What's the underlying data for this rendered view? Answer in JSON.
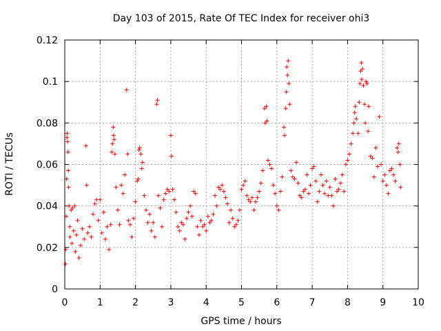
{
  "chart_data": {
    "type": "scatter",
    "title": "Day 103 of 2015, Rate Of TEC Index for receiver ohi3",
    "xlabel": "GPS time / hours",
    "ylabel": "ROTI / TECUs",
    "xlim": [
      0,
      10
    ],
    "ylim": [
      0,
      0.12
    ],
    "xticks": [
      "0",
      "1",
      "2",
      "3",
      "4",
      "5",
      "6",
      "7",
      "8",
      "9",
      "10"
    ],
    "yticks": [
      "0",
      "0.02",
      "0.04",
      "0.06",
      "0.08",
      "0.1",
      "0.12"
    ],
    "grid": true,
    "marker": "+",
    "marker_color": "#ff0000",
    "series": [
      {
        "name": "ROTI",
        "color": "#ff0000",
        "points": [
          [
            0.02,
            0.012
          ],
          [
            0.03,
            0.019
          ],
          [
            0.04,
            0.035
          ],
          [
            0.05,
            0.053
          ],
          [
            0.06,
            0.073
          ],
          [
            0.07,
            0.075
          ],
          [
            0.08,
            0.071
          ],
          [
            0.09,
            0.066
          ],
          [
            0.1,
            0.057
          ],
          [
            0.11,
            0.049
          ],
          [
            0.12,
            0.04
          ],
          [
            0.14,
            0.03
          ],
          [
            0.15,
            0.025
          ],
          [
            0.18,
            0.038
          ],
          [
            0.2,
            0.022
          ],
          [
            0.22,
            0.039
          ],
          [
            0.25,
            0.028
          ],
          [
            0.28,
            0.04
          ],
          [
            0.3,
            0.018
          ],
          [
            0.33,
            0.026
          ],
          [
            0.36,
            0.033
          ],
          [
            0.4,
            0.015
          ],
          [
            0.45,
            0.021
          ],
          [
            0.5,
            0.029
          ],
          [
            0.55,
            0.024
          ],
          [
            0.6,
            0.069
          ],
          [
            0.62,
            0.05
          ],
          [
            0.65,
            0.027
          ],
          [
            0.7,
            0.03
          ],
          [
            0.75,
            0.025
          ],
          [
            0.8,
            0.036
          ],
          [
            0.85,
            0.041
          ],
          [
            0.9,
            0.043
          ],
          [
            0.95,
            0.033
          ],
          [
            1.0,
            0.043
          ],
          [
            1.05,
            0.027
          ],
          [
            1.1,
            0.037
          ],
          [
            1.15,
            0.024
          ],
          [
            1.2,
            0.03
          ],
          [
            1.25,
            0.019
          ],
          [
            1.3,
            0.031
          ],
          [
            1.33,
            0.066
          ],
          [
            1.35,
            0.07
          ],
          [
            1.37,
            0.078
          ],
          [
            1.38,
            0.074
          ],
          [
            1.4,
            0.072
          ],
          [
            1.42,
            0.065
          ],
          [
            1.45,
            0.049
          ],
          [
            1.5,
            0.038
          ],
          [
            1.55,
            0.031
          ],
          [
            1.6,
            0.05
          ],
          [
            1.65,
            0.046
          ],
          [
            1.7,
            0.055
          ],
          [
            1.75,
            0.096
          ],
          [
            1.78,
            0.065
          ],
          [
            1.8,
            0.033
          ],
          [
            1.85,
            0.031
          ],
          [
            1.9,
            0.025
          ],
          [
            1.95,
            0.034
          ],
          [
            2.0,
            0.042
          ],
          [
            2.05,
            0.052
          ],
          [
            2.08,
            0.053
          ],
          [
            2.1,
            0.067
          ],
          [
            2.12,
            0.068
          ],
          [
            2.15,
            0.065
          ],
          [
            2.18,
            0.058
          ],
          [
            2.2,
            0.061
          ],
          [
            2.25,
            0.045
          ],
          [
            2.3,
            0.038
          ],
          [
            2.35,
            0.032
          ],
          [
            2.4,
            0.036
          ],
          [
            2.45,
            0.028
          ],
          [
            2.5,
            0.032
          ],
          [
            2.55,
            0.025
          ],
          [
            2.6,
            0.089
          ],
          [
            2.62,
            0.091
          ],
          [
            2.65,
            0.045
          ],
          [
            2.7,
            0.039
          ],
          [
            2.75,
            0.03
          ],
          [
            2.8,
            0.043
          ],
          [
            2.85,
            0.046
          ],
          [
            2.9,
            0.048
          ],
          [
            2.95,
            0.047
          ],
          [
            3.0,
            0.074
          ],
          [
            3.02,
            0.064
          ],
          [
            3.05,
            0.048
          ],
          [
            3.1,
            0.043
          ],
          [
            3.15,
            0.037
          ],
          [
            3.2,
            0.03
          ],
          [
            3.25,
            0.028
          ],
          [
            3.3,
            0.032
          ],
          [
            3.35,
            0.031
          ],
          [
            3.4,
            0.024
          ],
          [
            3.45,
            0.034
          ],
          [
            3.5,
            0.037
          ],
          [
            3.55,
            0.04
          ],
          [
            3.6,
            0.035
          ],
          [
            3.65,
            0.047
          ],
          [
            3.7,
            0.046
          ],
          [
            3.75,
            0.03
          ],
          [
            3.8,
            0.026
          ],
          [
            3.85,
            0.033
          ],
          [
            3.9,
            0.03
          ],
          [
            3.95,
            0.031
          ],
          [
            4.0,
            0.028
          ],
          [
            4.05,
            0.035
          ],
          [
            4.1,
            0.032
          ],
          [
            4.15,
            0.033
          ],
          [
            4.2,
            0.036
          ],
          [
            4.25,
            0.045
          ],
          [
            4.3,
            0.04
          ],
          [
            4.35,
            0.049
          ],
          [
            4.4,
            0.048
          ],
          [
            4.45,
            0.05
          ],
          [
            4.5,
            0.047
          ],
          [
            4.55,
            0.044
          ],
          [
            4.6,
            0.041
          ],
          [
            4.65,
            0.032
          ],
          [
            4.7,
            0.038
          ],
          [
            4.75,
            0.034
          ],
          [
            4.8,
            0.03
          ],
          [
            4.85,
            0.031
          ],
          [
            4.9,
            0.033
          ],
          [
            4.95,
            0.038
          ],
          [
            5.0,
            0.048
          ],
          [
            5.05,
            0.05
          ],
          [
            5.1,
            0.052
          ],
          [
            5.15,
            0.045
          ],
          [
            5.2,
            0.043
          ],
          [
            5.25,
            0.042
          ],
          [
            5.3,
            0.044
          ],
          [
            5.35,
            0.038
          ],
          [
            5.4,
            0.042
          ],
          [
            5.45,
            0.044
          ],
          [
            5.5,
            0.047
          ],
          [
            5.55,
            0.051
          ],
          [
            5.6,
            0.057
          ],
          [
            5.65,
            0.087
          ],
          [
            5.67,
            0.08
          ],
          [
            5.7,
            0.088
          ],
          [
            5.72,
            0.081
          ],
          [
            5.75,
            0.062
          ],
          [
            5.8,
            0.06
          ],
          [
            5.85,
            0.058
          ],
          [
            5.9,
            0.05
          ],
          [
            5.95,
            0.046
          ],
          [
            6.0,
            0.04
          ],
          [
            6.05,
            0.038
          ],
          [
            6.1,
            0.047
          ],
          [
            6.15,
            0.054
          ],
          [
            6.2,
            0.078
          ],
          [
            6.22,
            0.074
          ],
          [
            6.25,
            0.087
          ],
          [
            6.27,
            0.095
          ],
          [
            6.28,
            0.107
          ],
          [
            6.3,
            0.103
          ],
          [
            6.32,
            0.11
          ],
          [
            6.34,
            0.099
          ],
          [
            6.36,
            0.089
          ],
          [
            6.4,
            0.057
          ],
          [
            6.45,
            0.054
          ],
          [
            6.5,
            0.053
          ],
          [
            6.55,
            0.061
          ],
          [
            6.6,
            0.051
          ],
          [
            6.65,
            0.045
          ],
          [
            6.7,
            0.044
          ],
          [
            6.75,
            0.047
          ],
          [
            6.8,
            0.048
          ],
          [
            6.85,
            0.055
          ],
          [
            6.9,
            0.046
          ],
          [
            6.95,
            0.05
          ],
          [
            7.0,
            0.058
          ],
          [
            7.05,
            0.059
          ],
          [
            7.1,
            0.052
          ],
          [
            7.15,
            0.042
          ],
          [
            7.2,
            0.047
          ],
          [
            7.25,
            0.055
          ],
          [
            7.3,
            0.05
          ],
          [
            7.35,
            0.046
          ],
          [
            7.4,
            0.052
          ],
          [
            7.45,
            0.045
          ],
          [
            7.5,
            0.049
          ],
          [
            7.55,
            0.045
          ],
          [
            7.6,
            0.04
          ],
          [
            7.65,
            0.053
          ],
          [
            7.7,
            0.047
          ],
          [
            7.75,
            0.048
          ],
          [
            7.8,
            0.051
          ],
          [
            7.85,
            0.055
          ],
          [
            7.9,
            0.047
          ],
          [
            7.95,
            0.06
          ],
          [
            8.0,
            0.062
          ],
          [
            8.05,
            0.065
          ],
          [
            8.1,
            0.07
          ],
          [
            8.15,
            0.075
          ],
          [
            8.18,
            0.08
          ],
          [
            8.2,
            0.085
          ],
          [
            8.22,
            0.088
          ],
          [
            8.25,
            0.082
          ],
          [
            8.3,
            0.075
          ],
          [
            8.33,
            0.09
          ],
          [
            8.35,
            0.099
          ],
          [
            8.37,
            0.105
          ],
          [
            8.39,
            0.109
          ],
          [
            8.4,
            0.101
          ],
          [
            8.42,
            0.106
          ],
          [
            8.45,
            0.098
          ],
          [
            8.48,
            0.089
          ],
          [
            8.5,
            0.08
          ],
          [
            8.52,
            0.1
          ],
          [
            8.55,
            0.099
          ],
          [
            8.58,
            0.076
          ],
          [
            8.6,
            0.088
          ],
          [
            8.65,
            0.064
          ],
          [
            8.7,
            0.063
          ],
          [
            8.75,
            0.054
          ],
          [
            8.8,
            0.068
          ],
          [
            8.85,
            0.059
          ],
          [
            8.9,
            0.083
          ],
          [
            8.95,
            0.06
          ],
          [
            9.0,
            0.052
          ],
          [
            9.05,
            0.055
          ],
          [
            9.1,
            0.05
          ],
          [
            9.15,
            0.046
          ],
          [
            9.2,
            0.057
          ],
          [
            9.25,
            0.058
          ],
          [
            9.3,
            0.055
          ],
          [
            9.35,
            0.052
          ],
          [
            9.4,
            0.068
          ],
          [
            9.43,
            0.066
          ],
          [
            9.45,
            0.07
          ],
          [
            9.48,
            0.06
          ],
          [
            9.5,
            0.049
          ]
        ]
      }
    ]
  }
}
